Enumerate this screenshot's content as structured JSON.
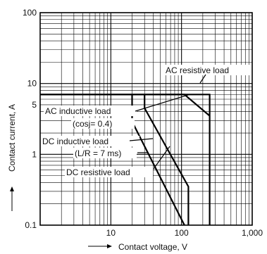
{
  "chart_data": {
    "type": "line",
    "xlabel": "Contact voltage, V",
    "ylabel": "Contact current, A",
    "xscale": "log",
    "yscale": "log",
    "xlim": [
      1,
      1000
    ],
    "ylim": [
      0.1,
      100
    ],
    "grid": true,
    "x_ticks": [
      {
        "value": 10,
        "label": "10"
      },
      {
        "value": 100,
        "label": "100"
      },
      {
        "value": 1000,
        "label": "1,000"
      }
    ],
    "y_ticks": [
      {
        "value": 0.1,
        "label": "0.1"
      },
      {
        "value": 1,
        "label": "1"
      },
      {
        "value": 5,
        "label": "5"
      },
      {
        "value": 10,
        "label": "10"
      },
      {
        "value": 100,
        "label": "100"
      }
    ],
    "series": [
      {
        "name": "AC resistive load",
        "x": [
          1,
          250,
          250
        ],
        "y": [
          7,
          7,
          0.1
        ]
      },
      {
        "name": "AC inductive load",
        "x": [
          1,
          110,
          250
        ],
        "y": [
          7,
          7,
          3.5
        ]
      },
      {
        "name": "DC inductive load",
        "x": [
          20,
          20,
          110
        ],
        "y": [
          7,
          2.9,
          0.1
        ]
      },
      {
        "name": "DC resistive load",
        "x": [
          30,
          30,
          125,
          125
        ],
        "y": [
          7,
          4.5,
          0.35,
          0.1
        ]
      }
    ],
    "annotations": [
      {
        "text": "AC resistive load"
      },
      {
        "text": "AC inductive load"
      },
      {
        "text": "(cosj= 0.4)"
      },
      {
        "text": "DC  inductive load"
      },
      {
        "text": "(L/R = 7 ms)"
      },
      {
        "text": "DC resistive load"
      }
    ]
  }
}
